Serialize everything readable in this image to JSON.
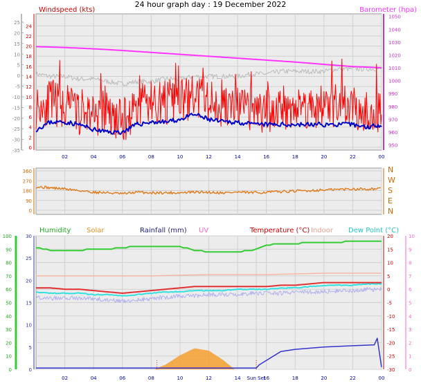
{
  "page_title": "24 hour graph day : 19 December 2022",
  "colors": {
    "windspeed": "#ff0000",
    "gust_avg": "#0000cc",
    "barometer": "#ff33ff",
    "baro_tick": "#cc33cc",
    "dewpoint_grey": "#bbbbbb",
    "direction": "#e07a1a",
    "humidity": "#33cc33",
    "solar": "#f5a030",
    "rainfall": "#3333cc",
    "uv": "#ff66cc",
    "temperature": "#e03030",
    "indoor": "#f5b8a8",
    "dewpoint": "#33e0e0",
    "temp_light": "#b0b0f0",
    "plot_bg": "#ececec",
    "axis": "#777777"
  },
  "chart_data": [
    {
      "type": "line",
      "name": "wind-barometer",
      "title": "",
      "left_label": "Windspeed (kts)",
      "right_label": "Barometer (hpa)",
      "x_ticks": [
        "02",
        "04",
        "06",
        "08",
        "10",
        "12",
        "14",
        "16",
        "18",
        "20",
        "22",
        "00"
      ],
      "y_left_outer_ticks": [
        25,
        20,
        15,
        10,
        5,
        0,
        -5,
        -10,
        -15,
        -20,
        -25,
        -30,
        -35
      ],
      "y_left_inner_ticks": [
        24,
        22,
        20,
        18,
        16,
        14,
        12,
        10,
        8,
        6,
        4,
        2,
        0
      ],
      "y_right_ticks": [
        1050,
        1040,
        1030,
        1020,
        1010,
        1000,
        990,
        980,
        970,
        960,
        950
      ],
      "ylim_wind": [
        0,
        25
      ],
      "ylim_baro": [
        946,
        1052
      ],
      "series": [
        {
          "name": "Barometer",
          "x": [
            0,
            2,
            4,
            6,
            8,
            10,
            12,
            14,
            16,
            18,
            20,
            22,
            24
          ],
          "values": [
            1026.5,
            1025.8,
            1024.8,
            1023.5,
            1022,
            1020.5,
            1019,
            1017.5,
            1016,
            1014.5,
            1012.7,
            1011,
            1010
          ]
        },
        {
          "name": "Windspeed",
          "x": [
            0,
            1,
            2,
            3,
            4,
            5,
            6,
            7,
            8,
            9,
            10,
            11,
            12,
            13,
            14,
            15,
            16,
            17,
            18,
            19,
            20,
            21,
            22,
            23,
            24
          ],
          "values": [
            8,
            9,
            8,
            7,
            7,
            6,
            5,
            8,
            9,
            9,
            9,
            10,
            9,
            8,
            8,
            7,
            7,
            8,
            8,
            8,
            8,
            8,
            8,
            7,
            7
          ]
        },
        {
          "name": "Gust average",
          "x": [
            0,
            1,
            2,
            3,
            4,
            5,
            6,
            7,
            8,
            9,
            10,
            11,
            12,
            13,
            14,
            15,
            16,
            17,
            18,
            19,
            20,
            21,
            22,
            23,
            24
          ],
          "values": [
            3.5,
            5,
            5,
            4.5,
            3.5,
            3,
            3,
            4.5,
            5,
            5,
            5.5,
            6.5,
            5.5,
            5,
            5,
            4.5,
            4.5,
            4.5,
            4.5,
            4.5,
            4.5,
            4.5,
            4.5,
            4,
            4.5
          ]
        },
        {
          "name": "Grey trace",
          "x": [
            0,
            1,
            2,
            3,
            4,
            5,
            6,
            7,
            8,
            9,
            10,
            11,
            12,
            13,
            14,
            15,
            16,
            17,
            18,
            19,
            20,
            21,
            22,
            23,
            24
          ],
          "values": [
            14.5,
            14,
            14,
            13.5,
            13.5,
            13,
            12.5,
            13,
            13,
            13.5,
            13.5,
            14,
            14,
            14,
            14,
            14.5,
            14.5,
            15,
            15,
            15,
            15,
            15.5,
            15.5,
            15.5,
            15.5
          ]
        }
      ]
    },
    {
      "type": "line",
      "name": "wind-direction",
      "y_ticks": [
        360,
        270,
        180,
        90,
        0
      ],
      "dir_ticks": [
        "N",
        "W",
        "S",
        "E",
        "N"
      ],
      "ylim": [
        0,
        360
      ],
      "x": [
        0,
        1,
        2,
        3,
        4,
        5,
        6,
        7,
        8,
        9,
        10,
        11,
        12,
        13,
        14,
        15,
        16,
        17,
        18,
        19,
        20,
        21,
        22,
        23,
        24
      ],
      "values": [
        215,
        205,
        195,
        180,
        165,
        160,
        150,
        165,
        160,
        160,
        160,
        165,
        165,
        160,
        165,
        160,
        165,
        170,
        175,
        180,
        185,
        190,
        195,
        195,
        195
      ]
    },
    {
      "type": "line",
      "name": "temperature-humidity",
      "labels": {
        "humidity": "Humidity",
        "solar": "Solar",
        "rainfall": "Rainfall (mm)",
        "uv": "UV",
        "temperature": "Temperature (°C)",
        "indoor": "Indoor",
        "dewpoint": "Dew Point (°C)"
      },
      "x_ticks": [
        "02",
        "04",
        "06",
        "08",
        "10",
        "12",
        "14",
        "Sun Set",
        "16",
        "18",
        "20",
        "22",
        "00"
      ],
      "y_humidity_ticks": [
        100,
        90,
        80,
        70,
        60,
        50,
        40,
        30,
        20,
        10,
        0
      ],
      "y_rain_ticks": [
        30,
        25,
        20,
        15,
        10,
        5,
        0
      ],
      "y_temp_ticks": [
        20,
        15,
        10,
        5,
        0,
        -5,
        -10,
        -15,
        -20,
        -25,
        -30
      ],
      "y_uv_ticks": [
        10,
        9,
        8,
        7,
        6,
        5,
        4,
        3,
        2,
        1,
        0
      ],
      "ylim_humidity": [
        0,
        100
      ],
      "ylim_temp": [
        -30,
        20
      ],
      "ylim_rain": [
        0,
        30
      ],
      "series": [
        {
          "name": "Humidity",
          "x": [
            0,
            1,
            2,
            3,
            4,
            5,
            6,
            7,
            8,
            9,
            10,
            11,
            12,
            13,
            14,
            15,
            16,
            17,
            18,
            19,
            20,
            21,
            22,
            23,
            24
          ],
          "values": [
            91,
            89,
            89,
            89,
            90,
            90,
            91,
            92,
            92,
            92,
            92,
            89,
            88,
            88,
            88,
            89,
            93,
            94,
            94,
            95,
            95,
            95,
            96,
            96,
            96
          ]
        },
        {
          "name": "Temperature",
          "x": [
            0,
            1,
            2,
            3,
            4,
            5,
            6,
            7,
            8,
            9,
            10,
            11,
            12,
            13,
            14,
            15,
            16,
            17,
            18,
            19,
            20,
            21,
            22,
            23,
            24
          ],
          "values": [
            0.5,
            0.5,
            0,
            0,
            -0.5,
            -1,
            -1.5,
            -1,
            -0.5,
            0,
            0.5,
            1,
            1,
            1,
            1,
            1,
            1,
            1.5,
            1.5,
            2,
            2.5,
            2.5,
            2.5,
            2.5,
            2.5
          ]
        },
        {
          "name": "Dew Point",
          "x": [
            0,
            1,
            2,
            3,
            4,
            5,
            6,
            7,
            8,
            9,
            10,
            11,
            12,
            13,
            14,
            15,
            16,
            17,
            18,
            19,
            20,
            21,
            22,
            23,
            24
          ],
          "values": [
            -1,
            -1.5,
            -1.5,
            -1.5,
            -2,
            -2,
            -2.5,
            -2,
            -1.5,
            -1,
            -1,
            -0.5,
            -0.5,
            -0.5,
            0,
            0,
            0,
            0.5,
            0.5,
            1,
            1.5,
            1.5,
            1.5,
            2,
            2
          ]
        },
        {
          "name": "Indoor",
          "x": [
            0,
            4,
            8,
            12,
            16,
            20,
            24
          ],
          "values": [
            5,
            5,
            5,
            5.5,
            5.5,
            6,
            6
          ]
        },
        {
          "name": "Temperature trace",
          "x": [
            0,
            1,
            2,
            3,
            4,
            5,
            6,
            7,
            8,
            9,
            10,
            11,
            12,
            13,
            14,
            15,
            16,
            17,
            18,
            19,
            20,
            21,
            22,
            23,
            24
          ],
          "values": [
            -3,
            -3.5,
            -3,
            -3.5,
            -3.5,
            -4,
            -4.5,
            -4,
            -3.5,
            -3,
            -2.5,
            -2.5,
            -2,
            -2,
            -2,
            -1.5,
            -1.5,
            -1.5,
            -1,
            -1,
            -1,
            -0.5,
            -0.5,
            0,
            0
          ]
        },
        {
          "name": "Solar",
          "x": [
            8.2,
            9,
            10,
            11,
            12,
            13,
            13.8
          ],
          "values": [
            0,
            10,
            30,
            45,
            40,
            20,
            0
          ]
        },
        {
          "name": "Rainfall",
          "x": [
            0,
            15.3,
            15.5,
            16,
            17,
            18,
            20,
            22,
            23.5,
            23.7,
            24
          ],
          "values": [
            0.3,
            0.3,
            1,
            2,
            4,
            4.5,
            5,
            5.3,
            5.5,
            7,
            0.5
          ]
        }
      ]
    }
  ]
}
